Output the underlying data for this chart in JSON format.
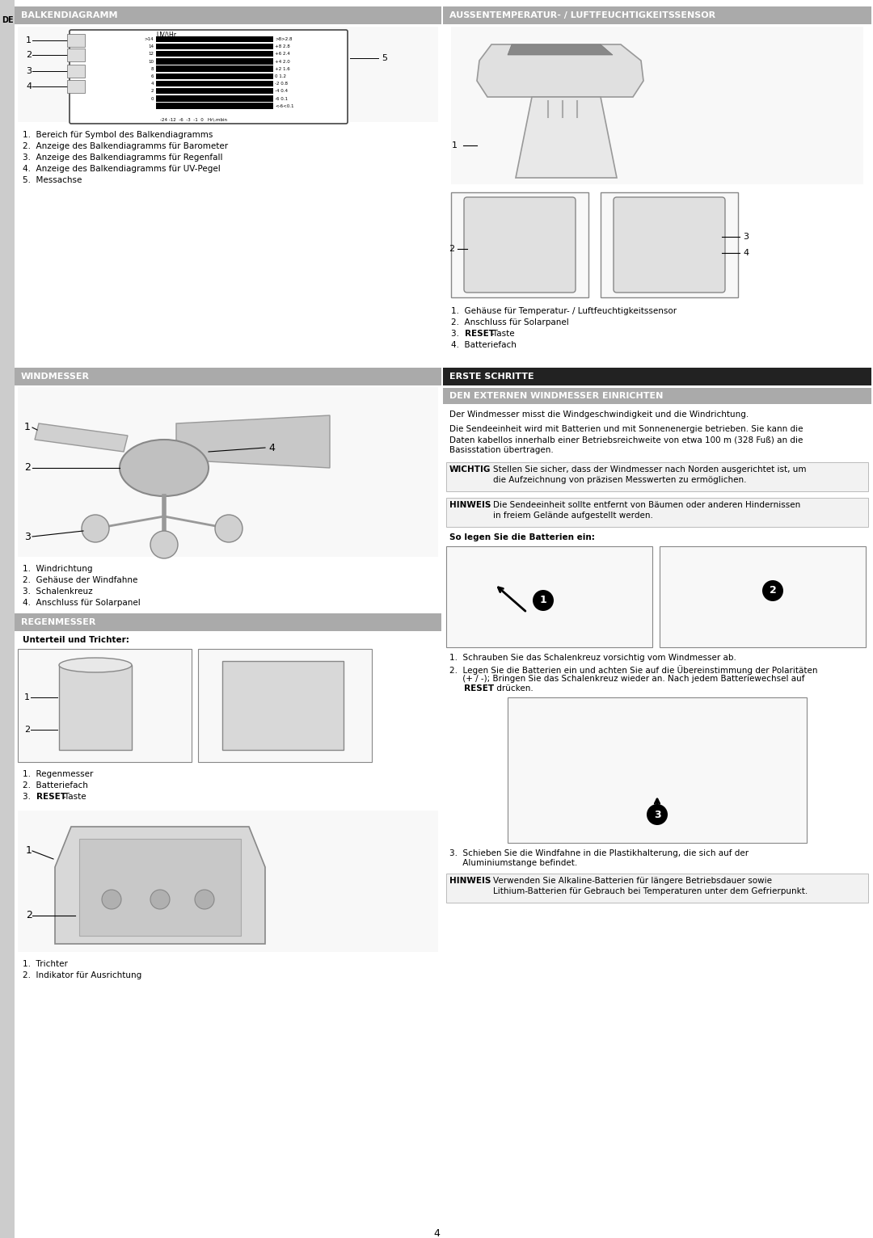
{
  "page_bg": "#ffffff",
  "sidebar_color": "#cccccc",
  "sidebar_text": "DE",
  "header_bg_dark": "#222222",
  "header_bg_gray": "#aaaaaa",
  "section_headers": {
    "balkendiagramm": "BALKENDIAGRAMM",
    "aussentemperatur": "AUSSENTEMPERATUR- / LUFTFEUCHTIGKEITSSENSOR",
    "windmesser": "WINDMESSER",
    "regenmesser": "REGENMESSER",
    "erste_schritte": "ERSTE SCHRITTE",
    "windmesser_einrichten": "DEN EXTERNEN WINDMESSER EINRICHTEN"
  },
  "balken_items": [
    "1.  Bereich für Symbol des Balkendiagramms",
    "2.  Anzeige des Balkendiagramms für Barometer",
    "3.  Anzeige des Balkendiagramms für Regenfall",
    "4.  Anzeige des Balkendiagramms für UV-Pegel",
    "5.  Messachse"
  ],
  "windmesser_items": [
    "1.  Windrichtung",
    "2.  Gehäuse der Windfahne",
    "3.  Schalenkreuz",
    "4.  Anschluss für Solarpanel"
  ],
  "aussentemp_items": [
    "1.  Gehäuse für Temperatur- / Luftfeuchtigkeitssensor",
    "2.  Anschluss für Solarpanel",
    "3.  RESET-Taste",
    "4.  Batteriefach"
  ],
  "regenmesser_subtitle": "Unterteil und Trichter:",
  "regenmesser_items": [
    "1.  Regenmesser",
    "2.  Batteriefach",
    "3.  RESET-Taste"
  ],
  "trichter_items": [
    "1.  Trichter",
    "2.  Indikator für Ausrichtung"
  ],
  "erste_schritte_text1": "Der Windmesser misst die Windgeschwindigkeit und die Windrichtung.",
  "erste_schritte_text2": "Die Sendeeinheit wird mit Batterien und mit Sonnenenergie betrieben. Sie kann die\nDaten kabellos innerhalb einer Betriebsreichweite von etwa 100 m (328 Fuß) an die\nBasisstation übertragen.",
  "wichtig_text": "Stellen Sie sicher, dass der Windmesser nach Norden ausgerichtet ist, um\ndie Aufzeichnung von präzisen Messwerten zu ermöglichen.",
  "hinweis_text1": "Die Sendeeinheit sollte entfernt von Bäumen oder anderen Hindernissen\nin freiem Gelände aufgestellt werden.",
  "so_legen_text": "So legen Sie die Batterien ein:",
  "battery_item1": "1.  Schrauben Sie das Schalenkreuz vorsichtig vom Windmesser ab.",
  "battery_item2a": "2.  Legen Sie die Batterien ein und achten Sie auf die Übereinstimmung der Polaritäten",
  "battery_item2b": "     (+ / -); Bringen Sie das Schalenkreuz wieder an. Nach jedem Batteriewechsel auf",
  "battery_item2c": "     RESET drücken.",
  "battery_item3a": "3.  Schieben Sie die Windfahne in die Plastikhalterung, die sich auf der",
  "battery_item3b": "     Aluminiumstange befindet.",
  "hinweis_text2": "Verwenden Sie Alkaline-Batterien für längere Betriebsdauer sowie\nLithium-Batterien für Gebrauch bei Temperaturen unter dem Gefrierpunkt.",
  "page_number": "4"
}
